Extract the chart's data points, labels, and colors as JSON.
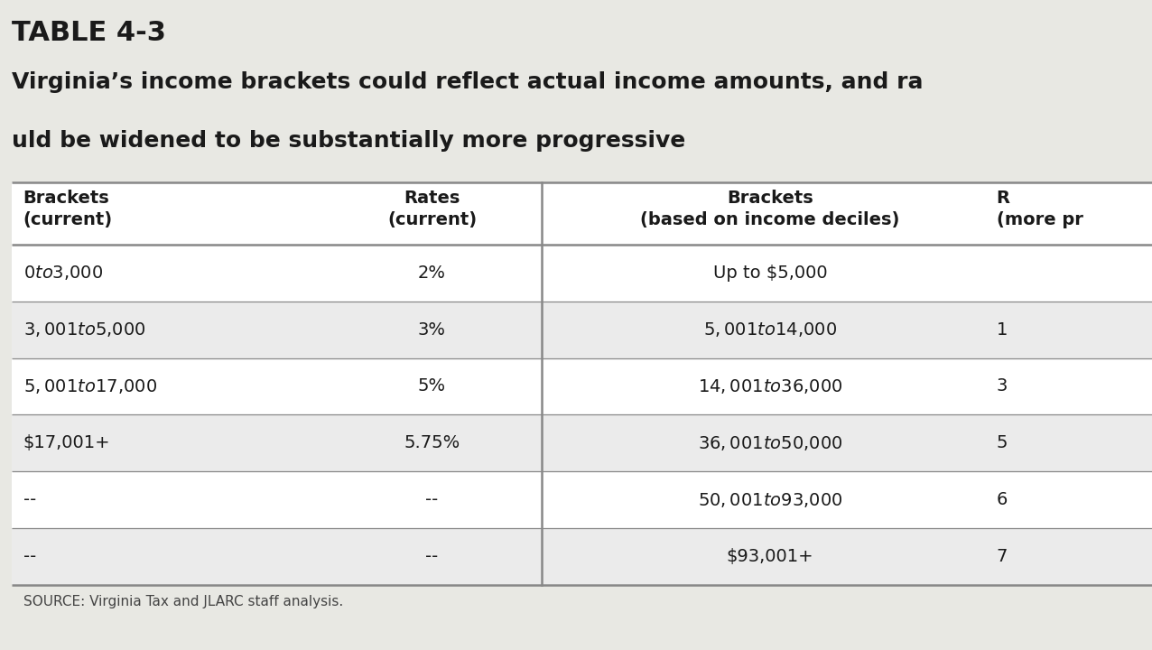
{
  "title_line1": "TABLE 4-3",
  "title_line2": "Virginia’s income brackets could reflect actual income amounts, and ra",
  "title_line3": "uld be widened to be substantially more progressive",
  "col1_header1": "Brackets",
  "col1_header2": "(current)",
  "col2_header1": "Rates",
  "col2_header2": "(current)",
  "col3_header1": "Brackets",
  "col3_header2": "(based on income deciles)",
  "col4_header1": "R",
  "col4_header2": "(more pr",
  "col1_data": [
    "$0 to $3,000",
    "$3,001 to $5,000",
    "$5,001 to $17,000",
    "$17,001+",
    "--",
    "--"
  ],
  "col2_data": [
    "2%",
    "3%",
    "5%",
    "5.75%",
    "--",
    "--"
  ],
  "col3_data": [
    "Up to $5,000",
    "$5,001 to $14,000",
    "$14,001 to $36,000",
    "$36,001 to $50,000",
    "$50,001 to $93,000",
    "$93,001+"
  ],
  "col4_data": [
    "",
    "1",
    "3",
    "5",
    "6",
    "7"
  ],
  "source_text": "SOURCE: Virginia Tax and JLARC staff analysis.",
  "bg_color": "#e8e8e3",
  "table_bg": "#ffffff",
  "row_bg_alt": "#ebebeb",
  "divider_color": "#888888",
  "text_color": "#1a1a1a",
  "header_font_size": 14,
  "cell_font_size": 14,
  "title_font_size1": 22,
  "title_font_size2": 18,
  "source_font_size": 11
}
